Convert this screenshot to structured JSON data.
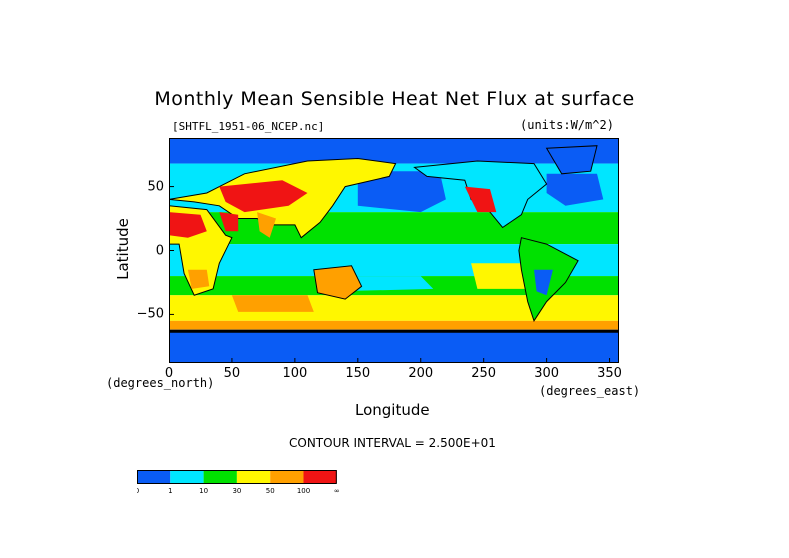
{
  "chart_data": {
    "type": "heatmap",
    "title": "Monthly Mean Sensible Heat Net Flux at surface",
    "file_label": "[SHTFL_1951-06_NCEP.nc]",
    "units_label": "(units:W/m^2)",
    "xlabel": "Longitude",
    "ylabel": "Latitude",
    "x_unit_label": "(degrees_east)",
    "y_unit_label": "(degrees_north)",
    "xlim": [
      0,
      357.5
    ],
    "ylim": [
      -88,
      88
    ],
    "x_ticks": [
      0,
      50,
      100,
      150,
      200,
      250,
      300,
      350
    ],
    "y_ticks": [
      50,
      0,
      -50
    ],
    "y_tick_labels": [
      "50",
      "0",
      "−50"
    ],
    "contour_interval": "CONTOUR INTERVAL = 2.500E+01",
    "colorbar": {
      "bins": [
        {
          "color": "#0a5cf5"
        },
        {
          "color": "#00e6ff"
        },
        {
          "color": "#00e100"
        },
        {
          "color": "#fff700"
        },
        {
          "color": "#ffa000"
        },
        {
          "color": "#f01414"
        }
      ],
      "labels": [
        "0",
        "1",
        "10",
        "30",
        "50",
        "100",
        "∞"
      ]
    }
  }
}
